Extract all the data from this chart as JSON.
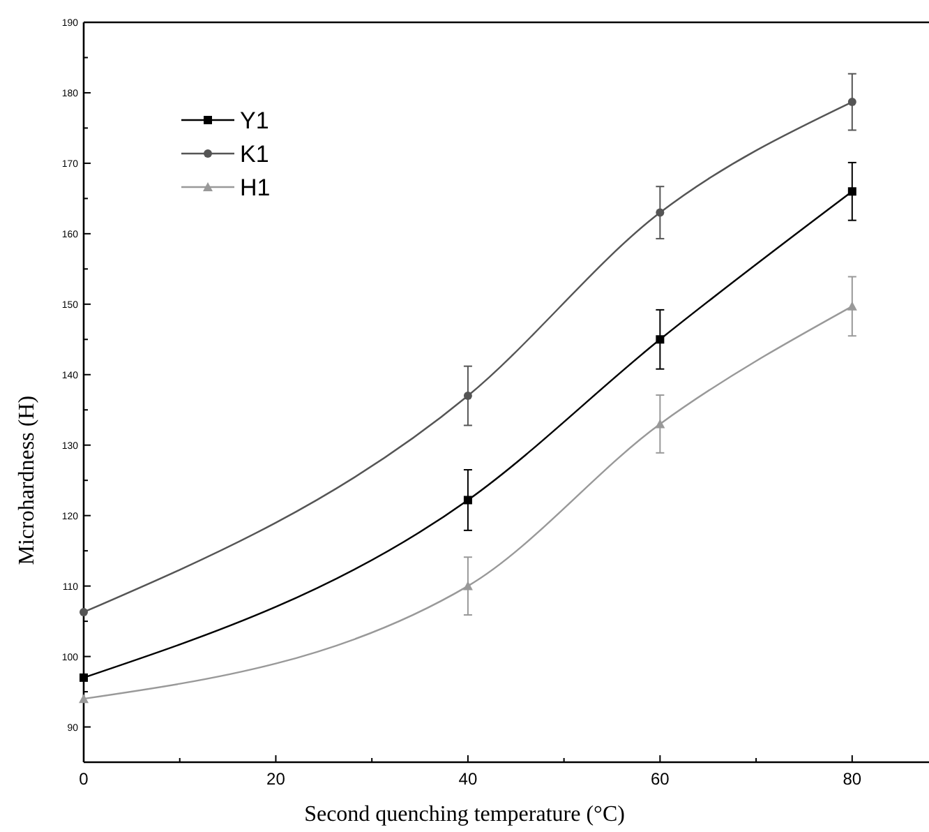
{
  "chart_data": {
    "type": "line",
    "xlabel": "Second quenching temperature (°C)",
    "ylabel": "Microhardness (H)",
    "x": [
      0,
      40,
      60,
      80
    ],
    "series": [
      {
        "name": "Y1",
        "color": "#000000",
        "marker": "square",
        "values": [
          97,
          122.2,
          145,
          166
        ],
        "errors": [
          null,
          4.3,
          4.2,
          4.1
        ]
      },
      {
        "name": "K1",
        "color": "#555555",
        "marker": "circle",
        "values": [
          106.3,
          137,
          163,
          178.7
        ],
        "errors": [
          null,
          4.2,
          3.7,
          4
        ]
      },
      {
        "name": "H1",
        "color": "#999999",
        "marker": "triangle",
        "values": [
          94,
          110,
          133,
          149.7
        ],
        "errors": [
          null,
          4.1,
          4.1,
          4.2
        ]
      }
    ],
    "xlim": [
      0,
      88
    ],
    "xticks": [
      0,
      {
        "value": 10,
        "label": null
      },
      20,
      {
        "value": 30,
        "label": null
      },
      40,
      {
        "value": 50,
        "label": null
      },
      60,
      {
        "value": 70,
        "label": null
      },
      80
    ],
    "ylim": [
      85,
      190
    ],
    "yticks": [
      90,
      {
        "value": 95,
        "label": null
      },
      100,
      {
        "value": 105,
        "label": null
      },
      110,
      {
        "value": 115,
        "label": null
      },
      120,
      {
        "value": 125,
        "label": null
      },
      130,
      {
        "value": 135,
        "label": null
      },
      140,
      {
        "value": 145,
        "label": null
      },
      150,
      {
        "value": 155,
        "label": null
      },
      160,
      {
        "value": 165,
        "label": null
      },
      170,
      {
        "value": 175,
        "label": null
      },
      180,
      {
        "value": 185,
        "label": null
      },
      190
    ],
    "legend": "top left",
    "grid": false,
    "line_style": "solid"
  }
}
